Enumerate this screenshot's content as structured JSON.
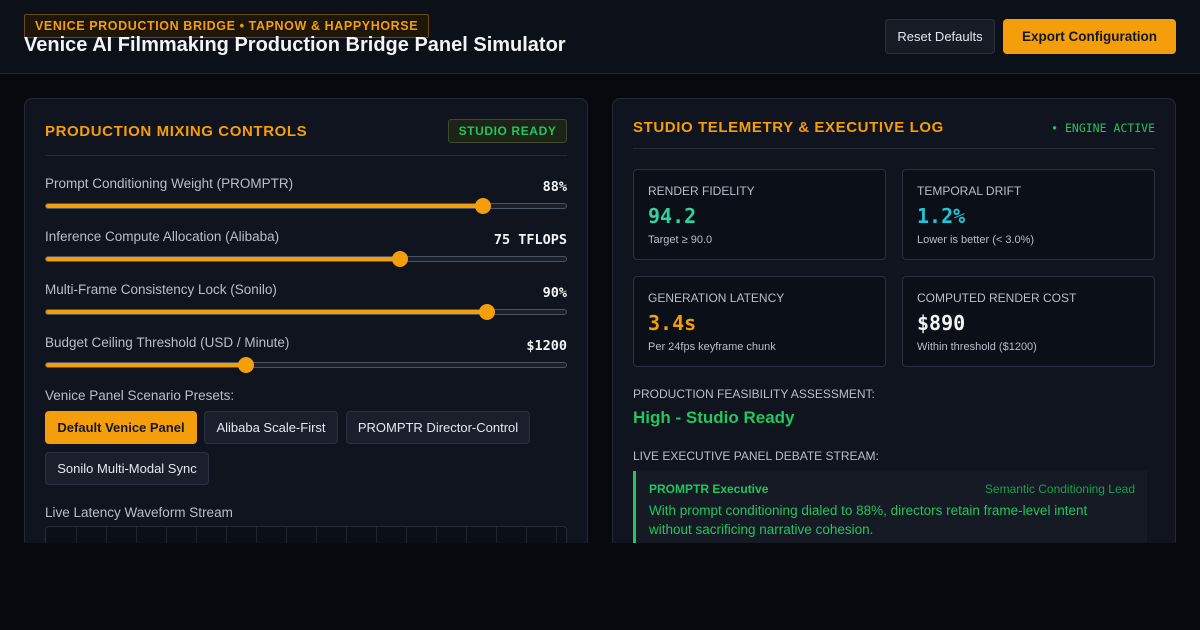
{
  "header": {
    "eyebrow": "VENICE PRODUCTION BRIDGE • TAPNOW & HAPPYHORSE",
    "title": "Venice AI Filmmaking Production Bridge Panel Simulator",
    "reset_label": "Reset Defaults",
    "export_label": "Export Configuration"
  },
  "mixing": {
    "title": "PRODUCTION MIXING CONTROLS",
    "status_badge": "STUDIO READY",
    "sliders": [
      {
        "label": "Prompt Conditioning Weight (PROMPTR)",
        "value_text": "88%",
        "fraction": 0.84
      },
      {
        "label": "Inference Compute Allocation (Alibaba)",
        "value_text": "75 TFLOPS",
        "fraction": 0.68
      },
      {
        "label": "Multi-Frame Consistency Lock (Sonilo)",
        "value_text": "90%",
        "fraction": 0.848
      },
      {
        "label": "Budget Ceiling Threshold (USD / Minute)",
        "value_text": "$1200",
        "fraction": 0.385
      }
    ],
    "presets_label": "Venice Panel Scenario Presets:",
    "presets": [
      {
        "label": "Default Venice Panel",
        "active": true
      },
      {
        "label": "Alibaba Scale-First",
        "active": false
      },
      {
        "label": "PROMPTR Director-Control",
        "active": false
      },
      {
        "label": "Sonilo Multi-Modal Sync",
        "active": false
      }
    ],
    "waveform_label": "Live Latency Waveform Stream"
  },
  "telemetry": {
    "title": "STUDIO TELEMETRY & EXECUTIVE LOG",
    "engine_status": "• ENGINE ACTIVE",
    "metrics": [
      {
        "label": "RENDER FIDELITY",
        "value": "94.2",
        "note": "Target ≥ 90.0",
        "color": "#2dd4a0"
      },
      {
        "label": "TEMPORAL DRIFT",
        "value": "1.2%",
        "note": "Lower is better (< 3.0%)",
        "color": "#22c5d8"
      },
      {
        "label": "GENERATION LATENCY",
        "value": "3.4s",
        "note": "Per 24fps keyframe chunk",
        "color": "#f59e0b"
      },
      {
        "label": "COMPUTED RENDER COST",
        "value": "$890",
        "note": "Within threshold ($1200)",
        "color": "#f3f4f6"
      }
    ],
    "feasibility_label": "PRODUCTION FEASIBILITY ASSESSMENT:",
    "feasibility_value": "High - Studio Ready",
    "stream_label": "LIVE EXECUTIVE PANEL DEBATE STREAM:",
    "log": [
      {
        "speaker": "PROMPTR Executive",
        "role": "Semantic Conditioning Lead",
        "message": "With prompt conditioning dialed to 88%, directors retain frame-level intent without sacrificing narrative cohesion."
      }
    ]
  }
}
